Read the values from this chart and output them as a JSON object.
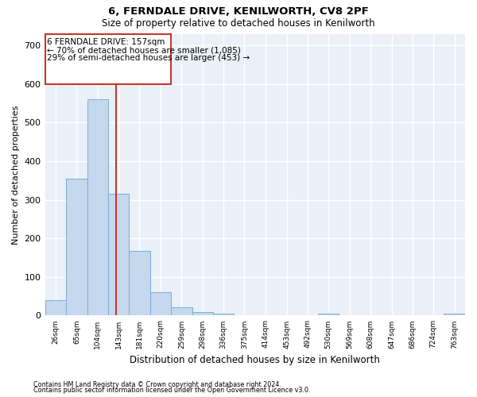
{
  "title1": "6, FERNDALE DRIVE, KENILWORTH, CV8 2PF",
  "title2": "Size of property relative to detached houses in Kenilworth",
  "xlabel": "Distribution of detached houses by size in Kenilworth",
  "ylabel": "Number of detached properties",
  "annotation_line1": "6 FERNDALE DRIVE: 157sqm",
  "annotation_line2": "← 70% of detached houses are smaller (1,085)",
  "annotation_line3": "29% of semi-detached houses are larger (453) →",
  "bar_color": "#c5d8ed",
  "bar_edge_color": "#7aaed6",
  "vline_color": "#c0392b",
  "vline_x": 157,
  "background_color": "#eaf0f8",
  "bin_edges": [
    26,
    65,
    104,
    143,
    181,
    220,
    259,
    298,
    336,
    375,
    414,
    453,
    492,
    530,
    569,
    608,
    647,
    686,
    724,
    763,
    802
  ],
  "bar_heights": [
    40,
    355,
    560,
    315,
    168,
    60,
    22,
    10,
    5,
    0,
    0,
    0,
    0,
    5,
    0,
    0,
    0,
    0,
    0,
    5
  ],
  "ylim": [
    0,
    730
  ],
  "yticks": [
    0,
    100,
    200,
    300,
    400,
    500,
    600,
    700
  ],
  "grid_color": "#ffffff",
  "footnote1": "Contains HM Land Registry data © Crown copyright and database right 2024.",
  "footnote2": "Contains public sector information licensed under the Open Government Licence v3.0."
}
